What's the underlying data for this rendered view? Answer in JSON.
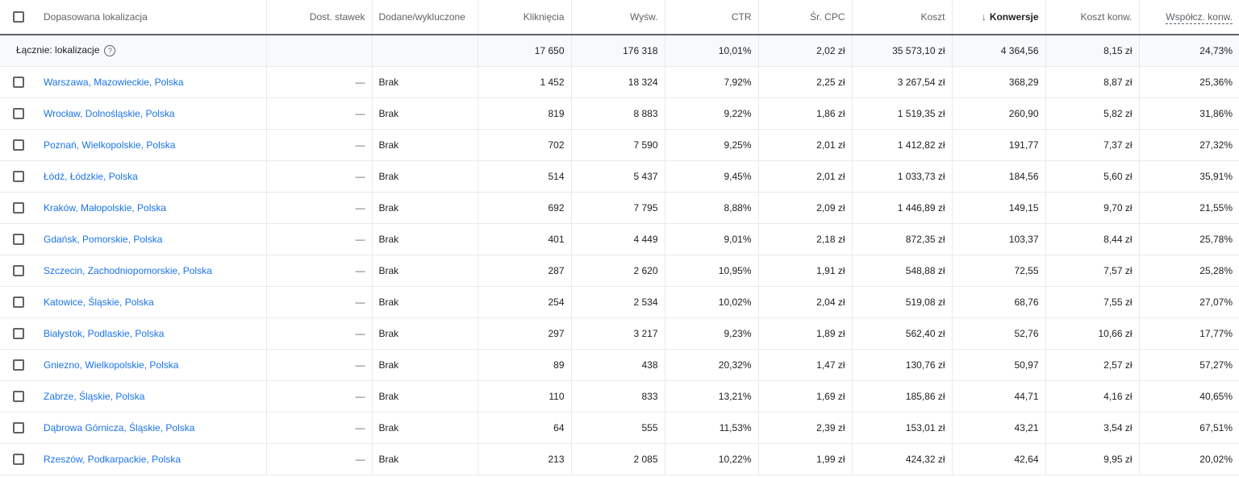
{
  "headers": {
    "location": "Dopasowana lokalizacja",
    "bid_adj": "Dost. stawek",
    "added_excluded": "Dodane/wykluczone",
    "clicks": "Kliknięcia",
    "impressions": "Wyśw.",
    "ctr": "CTR",
    "avg_cpc": "Śr. CPC",
    "cost": "Koszt",
    "sort_arrow": "↓",
    "conversions": "Konwersje",
    "cost_per_conv": "Koszt konw.",
    "conv_rate": "Współcz. konw."
  },
  "total": {
    "label": "Łącznie: lokalizacje",
    "help_icon": "?",
    "clicks": "17 650",
    "impressions": "176 318",
    "ctr": "10,01%",
    "avg_cpc": "2,02 zł",
    "cost": "35 573,10 zł",
    "conversions": "4 364,56",
    "cost_per_conv": "8,15 zł",
    "conv_rate": "24,73%"
  },
  "rows": [
    {
      "location": "Warszawa, Mazowieckie, Polska",
      "bid_adj": "—",
      "added": "Brak",
      "clicks": "1 452",
      "impressions": "18 324",
      "ctr": "7,92%",
      "avg_cpc": "2,25 zł",
      "cost": "3 267,54 zł",
      "conversions": "368,29",
      "cost_per_conv": "8,87 zł",
      "conv_rate": "25,36%"
    },
    {
      "location": "Wrocław, Dolnośląskie, Polska",
      "bid_adj": "—",
      "added": "Brak",
      "clicks": "819",
      "impressions": "8 883",
      "ctr": "9,22%",
      "avg_cpc": "1,86 zł",
      "cost": "1 519,35 zł",
      "conversions": "260,90",
      "cost_per_conv": "5,82 zł",
      "conv_rate": "31,86%"
    },
    {
      "location": "Poznań, Wielkopolskie, Polska",
      "bid_adj": "—",
      "added": "Brak",
      "clicks": "702",
      "impressions": "7 590",
      "ctr": "9,25%",
      "avg_cpc": "2,01 zł",
      "cost": "1 412,82 zł",
      "conversions": "191,77",
      "cost_per_conv": "7,37 zł",
      "conv_rate": "27,32%"
    },
    {
      "location": "Łódź, Łódzkie, Polska",
      "bid_adj": "—",
      "added": "Brak",
      "clicks": "514",
      "impressions": "5 437",
      "ctr": "9,45%",
      "avg_cpc": "2,01 zł",
      "cost": "1 033,73 zł",
      "conversions": "184,56",
      "cost_per_conv": "5,60 zł",
      "conv_rate": "35,91%"
    },
    {
      "location": "Kraków, Małopolskie, Polska",
      "bid_adj": "—",
      "added": "Brak",
      "clicks": "692",
      "impressions": "7 795",
      "ctr": "8,88%",
      "avg_cpc": "2,09 zł",
      "cost": "1 446,89 zł",
      "conversions": "149,15",
      "cost_per_conv": "9,70 zł",
      "conv_rate": "21,55%"
    },
    {
      "location": "Gdańsk, Pomorskie, Polska",
      "bid_adj": "—",
      "added": "Brak",
      "clicks": "401",
      "impressions": "4 449",
      "ctr": "9,01%",
      "avg_cpc": "2,18 zł",
      "cost": "872,35 zł",
      "conversions": "103,37",
      "cost_per_conv": "8,44 zł",
      "conv_rate": "25,78%"
    },
    {
      "location": "Szczecin, Zachodniopomorskie, Polska",
      "bid_adj": "—",
      "added": "Brak",
      "clicks": "287",
      "impressions": "2 620",
      "ctr": "10,95%",
      "avg_cpc": "1,91 zł",
      "cost": "548,88 zł",
      "conversions": "72,55",
      "cost_per_conv": "7,57 zł",
      "conv_rate": "25,28%"
    },
    {
      "location": "Katowice, Śląskie, Polska",
      "bid_adj": "—",
      "added": "Brak",
      "clicks": "254",
      "impressions": "2 534",
      "ctr": "10,02%",
      "avg_cpc": "2,04 zł",
      "cost": "519,08 zł",
      "conversions": "68,76",
      "cost_per_conv": "7,55 zł",
      "conv_rate": "27,07%"
    },
    {
      "location": "Białystok, Podlaskie, Polska",
      "bid_adj": "—",
      "added": "Brak",
      "clicks": "297",
      "impressions": "3 217",
      "ctr": "9,23%",
      "avg_cpc": "1,89 zł",
      "cost": "562,40 zł",
      "conversions": "52,76",
      "cost_per_conv": "10,66 zł",
      "conv_rate": "17,77%"
    },
    {
      "location": "Gniezno, Wielkopolskie, Polska",
      "bid_adj": "—",
      "added": "Brak",
      "clicks": "89",
      "impressions": "438",
      "ctr": "20,32%",
      "avg_cpc": "1,47 zł",
      "cost": "130,76 zł",
      "conversions": "50,97",
      "cost_per_conv": "2,57 zł",
      "conv_rate": "57,27%"
    },
    {
      "location": "Zabrze, Śląskie, Polska",
      "bid_adj": "—",
      "added": "Brak",
      "clicks": "110",
      "impressions": "833",
      "ctr": "13,21%",
      "avg_cpc": "1,69 zł",
      "cost": "185,86 zł",
      "conversions": "44,71",
      "cost_per_conv": "4,16 zł",
      "conv_rate": "40,65%"
    },
    {
      "location": "Dąbrowa Górnicza, Śląskie, Polska",
      "bid_adj": "—",
      "added": "Brak",
      "clicks": "64",
      "impressions": "555",
      "ctr": "11,53%",
      "avg_cpc": "2,39 zł",
      "cost": "153,01 zł",
      "conversions": "43,21",
      "cost_per_conv": "3,54 zł",
      "conv_rate": "67,51%"
    },
    {
      "location": "Rzeszów, Podkarpackie, Polska",
      "bid_adj": "—",
      "added": "Brak",
      "clicks": "213",
      "impressions": "2 085",
      "ctr": "10,22%",
      "avg_cpc": "1,99 zł",
      "cost": "424,32 zł",
      "conversions": "42,64",
      "cost_per_conv": "9,95 zł",
      "conv_rate": "20,02%"
    }
  ]
}
